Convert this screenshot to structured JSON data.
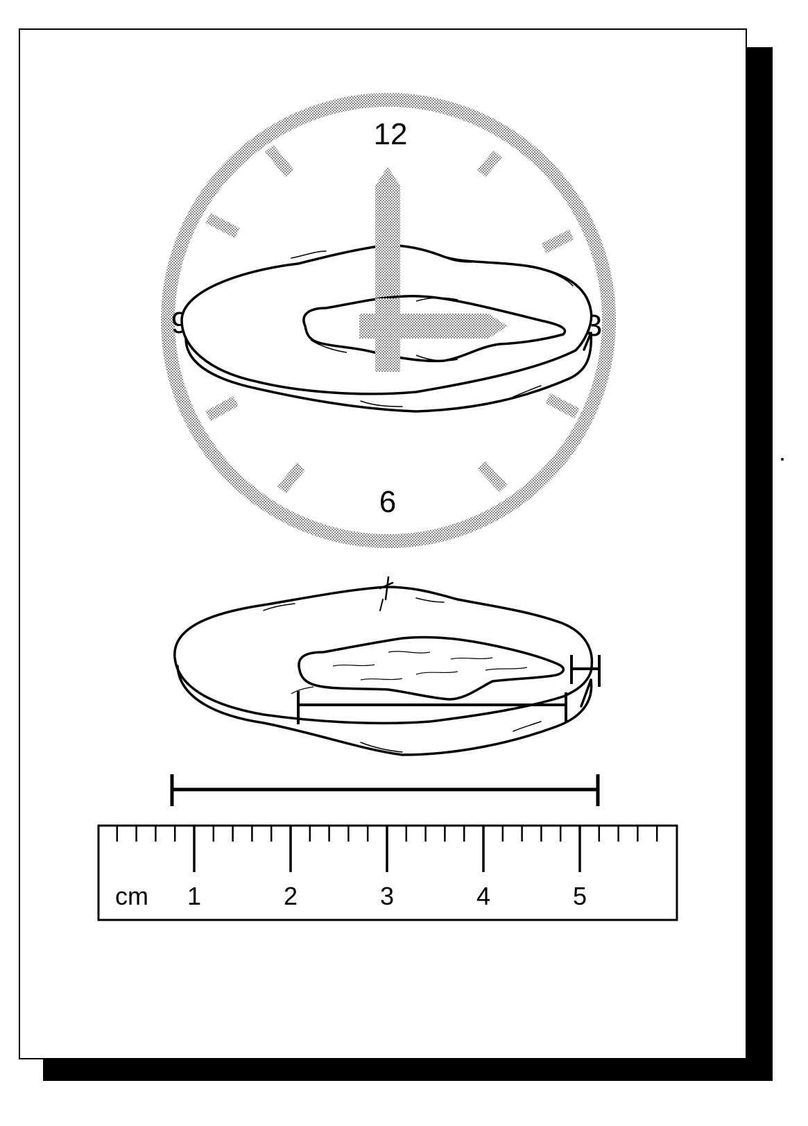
{
  "clock": {
    "labels": {
      "twelve": "12",
      "three": "3",
      "six": "6",
      "nine": "9"
    }
  },
  "ruler": {
    "unit": "cm",
    "major_labels": [
      "1",
      "2",
      "3",
      "4",
      "5"
    ]
  },
  "colors": {
    "ink": "#000000",
    "paper": "#ffffff",
    "shade": "#a6a6a6",
    "shadow": "#000000"
  }
}
